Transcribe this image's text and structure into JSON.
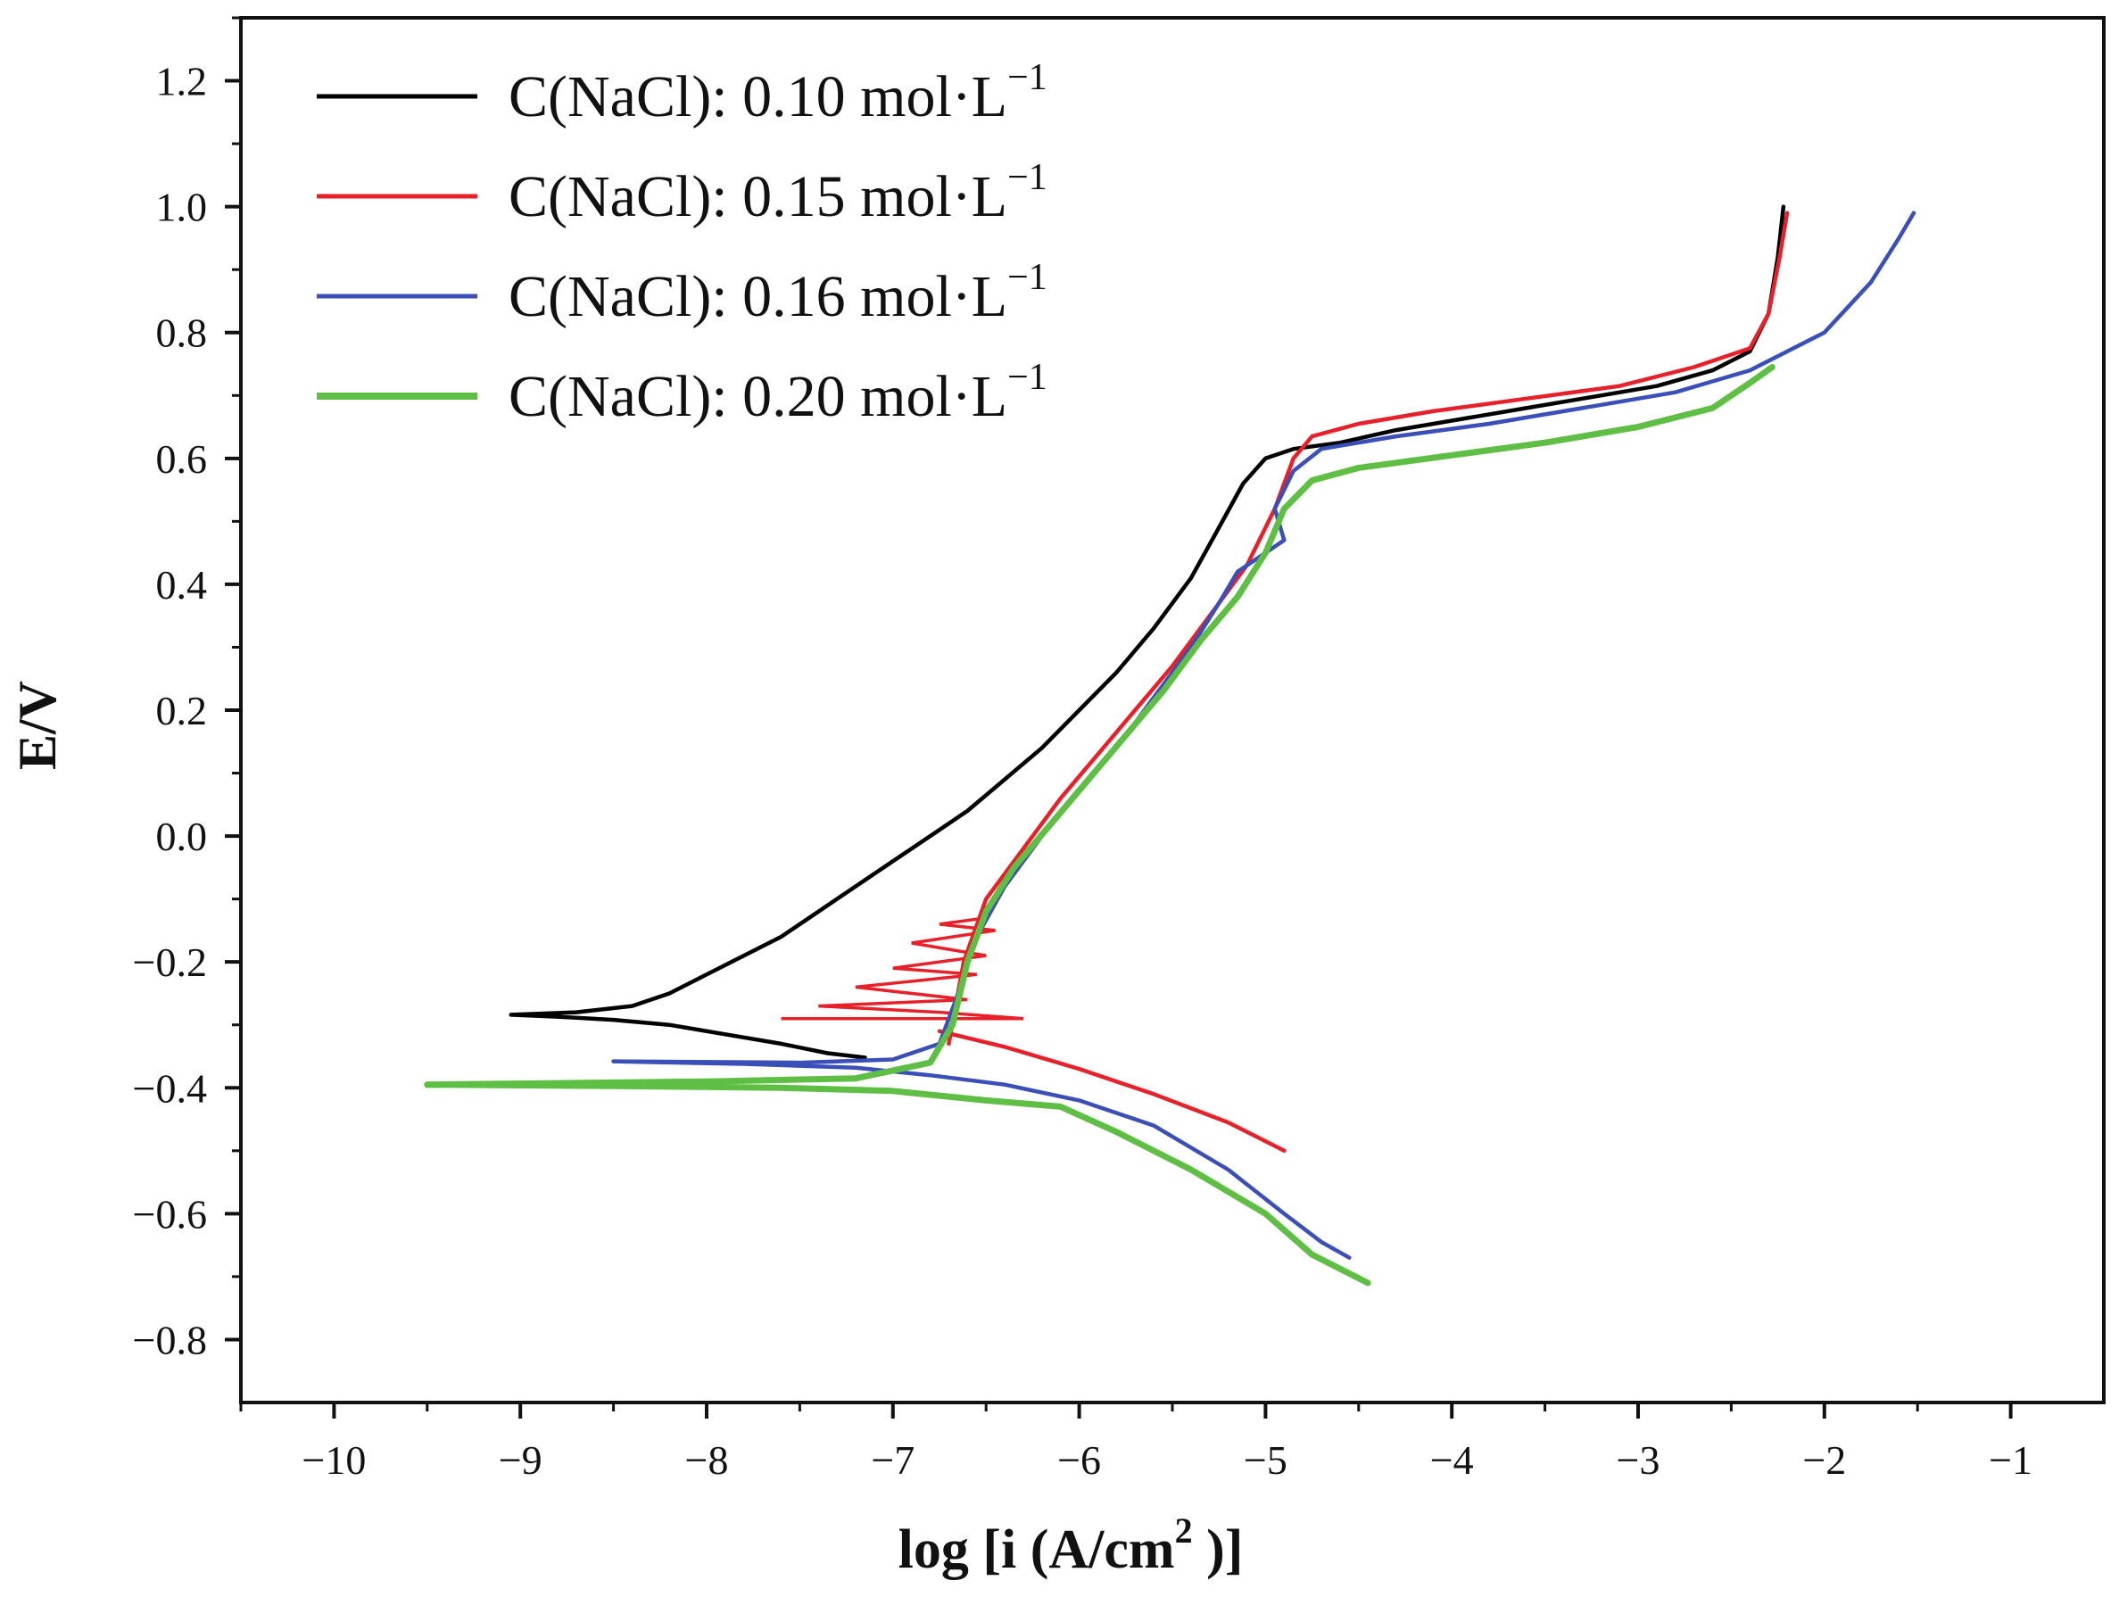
{
  "chart_data": {
    "type": "line",
    "title": "",
    "xlabel": "log [i (A/cm",
    "xlabel_sup": "2",
    "xlabel_end": " )]",
    "ylabel": "E/V",
    "xlim": [
      -10.5,
      -0.5
    ],
    "ylim": [
      -0.9,
      1.3
    ],
    "xticks": [
      -10,
      -9,
      -8,
      -7,
      -6,
      -5,
      -4,
      -3,
      -2,
      -1
    ],
    "xtick_labels": [
      "−10",
      "−9",
      "−8",
      "−7",
      "−6",
      "−5",
      "−4",
      "−3",
      "−2",
      "−1"
    ],
    "yticks": [
      -0.8,
      -0.6,
      -0.4,
      -0.2,
      0.0,
      0.2,
      0.4,
      0.6,
      0.8,
      1.0,
      1.2
    ],
    "ytick_labels": [
      "−0.8",
      "−0.6",
      "−0.4",
      "−0.2",
      "0.0",
      "0.2",
      "0.4",
      "0.6",
      "0.8",
      "1.0",
      "1.2"
    ],
    "grid": false,
    "legend_position": "top-left",
    "series": [
      {
        "name": "C(NaCl): 0.10 mol·L",
        "name_sup": "−1",
        "color": "#000000",
        "cathodic": [
          [
            -9.05,
            -0.284
          ],
          [
            -8.8,
            -0.287
          ],
          [
            -8.5,
            -0.292
          ],
          [
            -8.2,
            -0.3
          ],
          [
            -7.9,
            -0.315
          ],
          [
            -7.6,
            -0.33
          ],
          [
            -7.35,
            -0.345
          ],
          [
            -7.15,
            -0.352
          ]
        ],
        "anodic": [
          [
            -9.05,
            -0.284
          ],
          [
            -8.7,
            -0.28
          ],
          [
            -8.4,
            -0.27
          ],
          [
            -8.2,
            -0.25
          ],
          [
            -8.0,
            -0.22
          ],
          [
            -7.8,
            -0.19
          ],
          [
            -7.6,
            -0.16
          ],
          [
            -7.4,
            -0.12
          ],
          [
            -7.2,
            -0.08
          ],
          [
            -7.0,
            -0.04
          ],
          [
            -6.8,
            0.0
          ],
          [
            -6.6,
            0.04
          ],
          [
            -6.4,
            0.09
          ],
          [
            -6.2,
            0.14
          ],
          [
            -6.0,
            0.2
          ],
          [
            -5.8,
            0.26
          ],
          [
            -5.6,
            0.33
          ],
          [
            -5.4,
            0.41
          ],
          [
            -5.25,
            0.49
          ],
          [
            -5.12,
            0.56
          ],
          [
            -5.0,
            0.6
          ],
          [
            -4.85,
            0.615
          ],
          [
            -4.6,
            0.625
          ],
          [
            -4.3,
            0.645
          ],
          [
            -4.0,
            0.66
          ],
          [
            -3.6,
            0.68
          ],
          [
            -3.2,
            0.7
          ],
          [
            -2.9,
            0.715
          ],
          [
            -2.6,
            0.74
          ],
          [
            -2.4,
            0.77
          ],
          [
            -2.3,
            0.83
          ],
          [
            -2.25,
            0.92
          ],
          [
            -2.22,
            1.0
          ]
        ]
      },
      {
        "name": "C(NaCl): 0.15 mol·L",
        "name_sup": "−1",
        "color": "#e8202a",
        "cathodic": [
          [
            -6.75,
            -0.31
          ],
          [
            -6.4,
            -0.335
          ],
          [
            -6.0,
            -0.37
          ],
          [
            -5.6,
            -0.41
          ],
          [
            -5.2,
            -0.455
          ],
          [
            -4.9,
            -0.5
          ]
        ],
        "noise": [
          [
            -7.6,
            -0.29
          ],
          [
            -7.0,
            -0.29
          ],
          [
            -6.3,
            -0.29
          ],
          [
            -6.75,
            -0.28
          ],
          [
            -7.4,
            -0.27
          ],
          [
            -6.6,
            -0.26
          ],
          [
            -7.2,
            -0.24
          ],
          [
            -6.55,
            -0.22
          ],
          [
            -7.0,
            -0.21
          ],
          [
            -6.5,
            -0.19
          ],
          [
            -6.9,
            -0.17
          ],
          [
            -6.45,
            -0.15
          ],
          [
            -6.75,
            -0.14
          ],
          [
            -6.5,
            -0.13
          ]
        ],
        "anodic": [
          [
            -6.7,
            -0.33
          ],
          [
            -6.62,
            -0.2
          ],
          [
            -6.5,
            -0.1
          ],
          [
            -6.3,
            -0.02
          ],
          [
            -6.1,
            0.06
          ],
          [
            -5.9,
            0.13
          ],
          [
            -5.7,
            0.2
          ],
          [
            -5.5,
            0.27
          ],
          [
            -5.3,
            0.35
          ],
          [
            -5.1,
            0.43
          ],
          [
            -4.95,
            0.52
          ],
          [
            -4.85,
            0.6
          ],
          [
            -4.75,
            0.635
          ],
          [
            -4.5,
            0.655
          ],
          [
            -4.1,
            0.675
          ],
          [
            -3.6,
            0.695
          ],
          [
            -3.1,
            0.715
          ],
          [
            -2.7,
            0.745
          ],
          [
            -2.4,
            0.775
          ],
          [
            -2.3,
            0.83
          ],
          [
            -2.24,
            0.92
          ],
          [
            -2.2,
            0.99
          ]
        ]
      },
      {
        "name": "C(NaCl): 0.16 mol·L",
        "name_sup": "−1",
        "color": "#3a4fb8",
        "cathodic": [
          [
            -8.5,
            -0.358
          ],
          [
            -7.8,
            -0.362
          ],
          [
            -7.2,
            -0.368
          ],
          [
            -6.8,
            -0.38
          ],
          [
            -6.4,
            -0.395
          ],
          [
            -6.0,
            -0.42
          ],
          [
            -5.6,
            -0.46
          ],
          [
            -5.2,
            -0.53
          ],
          [
            -4.9,
            -0.6
          ],
          [
            -4.7,
            -0.645
          ],
          [
            -4.55,
            -0.67
          ]
        ],
        "anodic": [
          [
            -8.5,
            -0.358
          ],
          [
            -7.5,
            -0.36
          ],
          [
            -7.0,
            -0.355
          ],
          [
            -6.75,
            -0.33
          ],
          [
            -6.65,
            -0.25
          ],
          [
            -6.55,
            -0.16
          ],
          [
            -6.4,
            -0.08
          ],
          [
            -6.2,
            0.0
          ],
          [
            -6.0,
            0.07
          ],
          [
            -5.8,
            0.14
          ],
          [
            -5.6,
            0.22
          ],
          [
            -5.4,
            0.3
          ],
          [
            -5.25,
            0.37
          ],
          [
            -5.15,
            0.42
          ],
          [
            -5.0,
            0.45
          ],
          [
            -4.9,
            0.47
          ],
          [
            -4.95,
            0.52
          ],
          [
            -4.85,
            0.58
          ],
          [
            -4.7,
            0.615
          ],
          [
            -4.3,
            0.635
          ],
          [
            -3.8,
            0.655
          ],
          [
            -3.3,
            0.68
          ],
          [
            -2.8,
            0.705
          ],
          [
            -2.4,
            0.74
          ],
          [
            -2.0,
            0.8
          ],
          [
            -1.75,
            0.88
          ],
          [
            -1.6,
            0.95
          ],
          [
            -1.52,
            0.99
          ]
        ]
      },
      {
        "name": "C(NaCl): 0.20 mol·L",
        "name_sup": "−1",
        "color": "#5fbf45",
        "cathodic": [
          [
            -9.5,
            -0.395
          ],
          [
            -8.5,
            -0.397
          ],
          [
            -7.6,
            -0.4
          ],
          [
            -7.0,
            -0.405
          ],
          [
            -6.5,
            -0.42
          ],
          [
            -6.1,
            -0.43
          ],
          [
            -5.8,
            -0.47
          ],
          [
            -5.4,
            -0.53
          ],
          [
            -5.0,
            -0.6
          ],
          [
            -4.75,
            -0.665
          ],
          [
            -4.45,
            -0.71
          ]
        ],
        "anodic": [
          [
            -9.5,
            -0.395
          ],
          [
            -8.0,
            -0.39
          ],
          [
            -7.2,
            -0.385
          ],
          [
            -6.8,
            -0.36
          ],
          [
            -6.68,
            -0.3
          ],
          [
            -6.6,
            -0.2
          ],
          [
            -6.5,
            -0.12
          ],
          [
            -6.35,
            -0.05
          ],
          [
            -6.15,
            0.02
          ],
          [
            -5.95,
            0.09
          ],
          [
            -5.75,
            0.16
          ],
          [
            -5.55,
            0.23
          ],
          [
            -5.35,
            0.31
          ],
          [
            -5.15,
            0.38
          ],
          [
            -5.0,
            0.45
          ],
          [
            -4.9,
            0.52
          ],
          [
            -4.75,
            0.565
          ],
          [
            -4.5,
            0.585
          ],
          [
            -4.0,
            0.605
          ],
          [
            -3.5,
            0.625
          ],
          [
            -3.0,
            0.65
          ],
          [
            -2.6,
            0.68
          ],
          [
            -2.4,
            0.72
          ],
          [
            -2.28,
            0.745
          ]
        ]
      }
    ]
  }
}
